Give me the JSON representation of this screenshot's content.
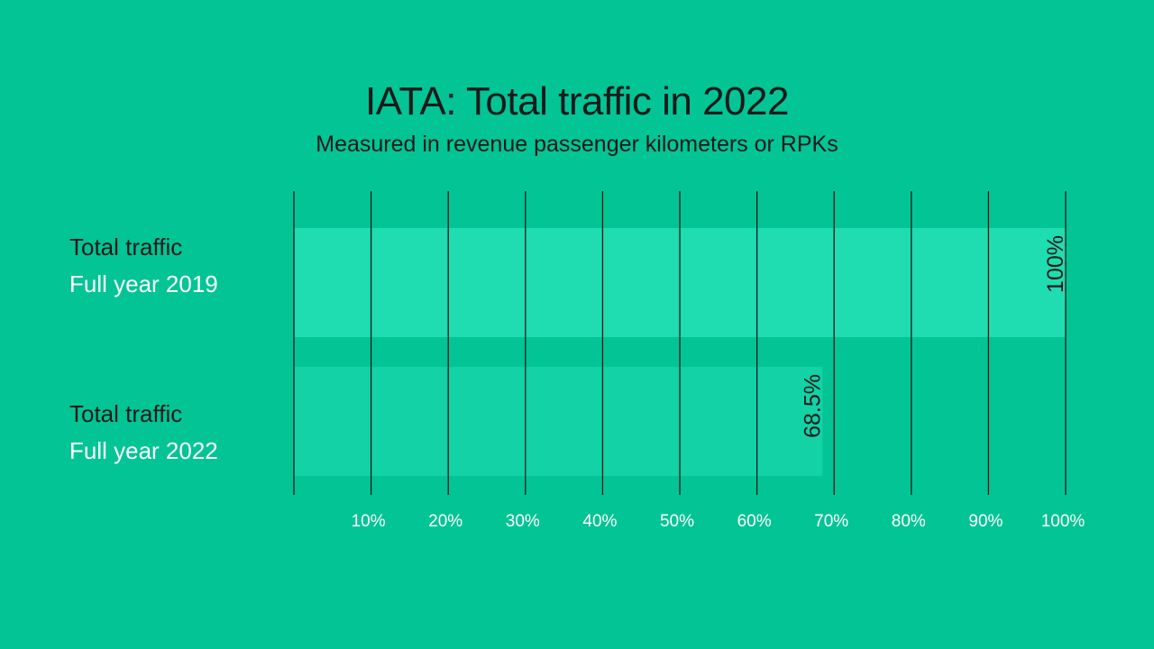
{
  "chart_data": {
    "type": "bar",
    "orientation": "horizontal",
    "title": "IATA: Total traffic in 2022",
    "subtitle": "Measured in revenue passenger kilometers or RPKs",
    "categories": [
      {
        "line1": "Total traffic",
        "line2": "Full year 2019"
      },
      {
        "line1": "Total traffic",
        "line2": "Full year 2022"
      }
    ],
    "values": [
      100,
      68.5
    ],
    "value_labels": [
      "100%",
      "68.5%"
    ],
    "xlim": [
      0,
      100
    ],
    "x_ticks": [
      10,
      20,
      30,
      40,
      50,
      60,
      70,
      80,
      90,
      100
    ],
    "x_tick_labels": [
      "10%",
      "20%",
      "30%",
      "40%",
      "50%",
      "60%",
      "70%",
      "80%",
      "90%",
      "100%"
    ],
    "grid": true,
    "colors": {
      "background": "#03c495",
      "bar_2019": "#1fdcb1",
      "bar_2022": "#12d2a6",
      "gridline": "#1a1a1a"
    }
  }
}
